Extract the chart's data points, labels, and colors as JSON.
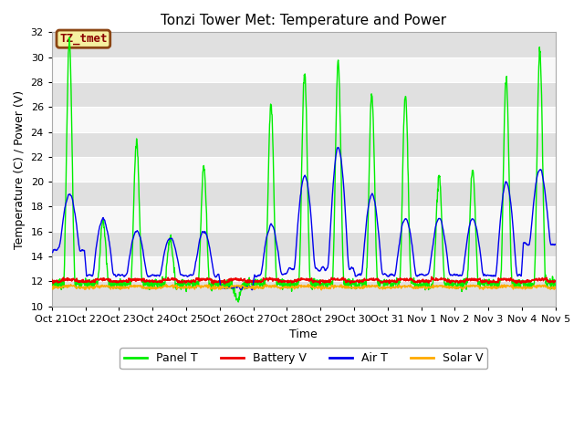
{
  "title": "Tonzi Tower Met: Temperature and Power",
  "xlabel": "Time",
  "ylabel": "Temperature (C) / Power (V)",
  "ylim": [
    10,
    32
  ],
  "annotation_text": "TZ_tmet",
  "x_tick_labels": [
    "Oct 21",
    "Oct 22",
    "Oct 23",
    "Oct 24",
    "Oct 25",
    "Oct 26",
    "Oct 27",
    "Oct 28",
    "Oct 29",
    "Oct 30",
    "Oct 31",
    "Nov 1",
    "Nov 2",
    "Nov 3",
    "Nov 4",
    "Nov 5"
  ],
  "bg_color": "#ffffff",
  "plot_bg_color": "#f0f0f0",
  "band_dark_color": "#e0e0e0",
  "band_light_color": "#f8f8f8",
  "line_colors": {
    "panel_t": "#00ee00",
    "battery_v": "#ee0000",
    "air_t": "#0000ee",
    "solar_v": "#ffaa00"
  },
  "legend_labels": [
    "Panel T",
    "Battery V",
    "Air T",
    "Solar V"
  ],
  "yticks": [
    10,
    12,
    14,
    16,
    18,
    20,
    22,
    24,
    26,
    28,
    30,
    32
  ],
  "panel_peaks": [
    31.2,
    17.0,
    23.2,
    15.5,
    21.2,
    10.5,
    26.2,
    28.8,
    29.6,
    27.0,
    27.0,
    20.5,
    21.0,
    28.2,
    30.5
  ],
  "air_peaks": [
    19.0,
    17.0,
    16.0,
    15.5,
    16.0,
    11.5,
    16.5,
    20.5,
    22.8,
    19.0,
    17.0,
    17.0,
    17.0,
    20.0,
    21.0
  ],
  "air_troughs": [
    14.5,
    12.5,
    12.5,
    12.5,
    12.5,
    11.5,
    12.5,
    13.0,
    13.0,
    12.5,
    12.5,
    12.5,
    12.5,
    12.5,
    15.0
  ],
  "battery_base": 12.0,
  "solar_base": 11.5,
  "title_fontsize": 11,
  "label_fontsize": 9,
  "tick_fontsize": 8,
  "annot_fontsize": 9,
  "legend_fontsize": 9
}
